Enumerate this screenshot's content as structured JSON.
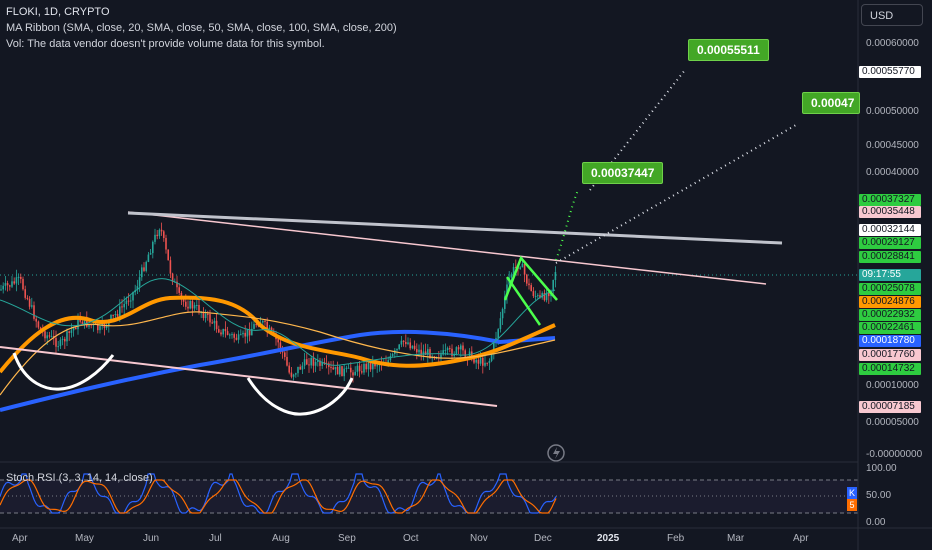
{
  "legend": {
    "symbol": "FLOKI, 1D, CRYPTO",
    "ma_ribbon": "MA Ribbon (SMA, close, 20, SMA, close, 50, SMA, close, 100, SMA, close, 200)",
    "volume": "Vol: The data vendor doesn't provide volume data for this symbol."
  },
  "currency": "USD",
  "price_axis": [
    "0.00060000",
    "0.00050000",
    "0.00045000",
    "0.00040000",
    "0.00010000",
    "0.00005000",
    "-0.00000000"
  ],
  "price_tags": [
    {
      "text": "0.00055770",
      "bg": "#ffffff",
      "fg": "#131722"
    },
    {
      "text": "0.00037327",
      "bg": "#2ecc40",
      "fg": "#131722"
    },
    {
      "text": "0.00035448",
      "bg": "#f8c8d0",
      "fg": "#131722"
    },
    {
      "text": "0.00032144",
      "bg": "#ffffff",
      "fg": "#131722"
    },
    {
      "text": "0.00029127",
      "bg": "#2ecc40",
      "fg": "#131722"
    },
    {
      "text": "0.00028841",
      "bg": "#2ecc40",
      "fg": "#131722"
    },
    {
      "text": "09:17:55",
      "bg": "#26a69a",
      "fg": "#ffffff"
    },
    {
      "text": "0.00025078",
      "bg": "#2ecc40",
      "fg": "#131722"
    },
    {
      "text": "0.00024876",
      "bg": "#ff9800",
      "fg": "#131722"
    },
    {
      "text": "0.00022932",
      "bg": "#2ecc40",
      "fg": "#131722"
    },
    {
      "text": "0.00022461",
      "bg": "#2ecc40",
      "fg": "#131722"
    },
    {
      "text": "0.00018780",
      "bg": "#2962ff",
      "fg": "#ffffff"
    },
    {
      "text": "0.00017760",
      "bg": "#f8c8d0",
      "fg": "#131722"
    },
    {
      "text": "0.00014732",
      "bg": "#2ecc40",
      "fg": "#131722"
    },
    {
      "text": "0.00007185",
      "bg": "#f8c8d0",
      "fg": "#131722"
    }
  ],
  "time_axis": [
    "Apr",
    "May",
    "Jun",
    "Jul",
    "Aug",
    "Sep",
    "Oct",
    "Nov",
    "Dec",
    "2025",
    "Feb",
    "Mar",
    "Apr"
  ],
  "targets": [
    "0.00055511",
    "0.00047",
    "0.00037447"
  ],
  "rsi": {
    "label": "Stoch RSI (3, 3, 14, 14, close)",
    "ticks": [
      "100.00",
      "50.00",
      "0.00"
    ],
    "k_badge": "K",
    "d_badge": "5"
  },
  "colors": {
    "background": "#131722",
    "candle_up": "#26a69a",
    "candle_down": "#ef5350",
    "sma20": "#26a69a",
    "sma50": "#ff9800",
    "sma100": "#ff9800",
    "sma200": "#2962ff",
    "target_callout": "#43a726"
  }
}
